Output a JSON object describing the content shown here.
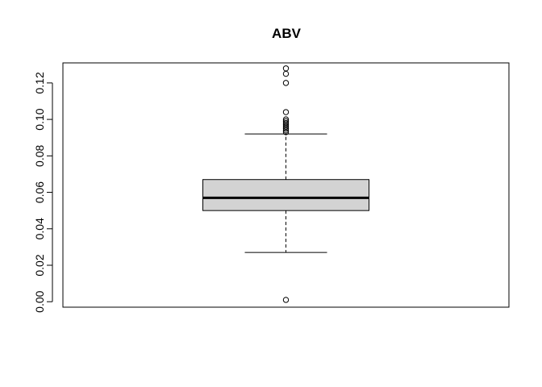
{
  "chart_data": {
    "type": "boxplot",
    "title": "ABV",
    "xlabel": "",
    "ylabel": "",
    "ylim": [
      -0.003,
      0.131
    ],
    "y_ticks": [
      0.0,
      0.02,
      0.04,
      0.06,
      0.08,
      0.1,
      0.12
    ],
    "y_tick_labels": [
      "0.00",
      "0.02",
      "0.04",
      "0.06",
      "0.08",
      "0.10",
      "0.12"
    ],
    "box": {
      "whisker_low": 0.027,
      "q1": 0.05,
      "median": 0.057,
      "q3": 0.067,
      "whisker_high": 0.092
    },
    "outliers": [
      0.001,
      0.093,
      0.094,
      0.095,
      0.096,
      0.097,
      0.098,
      0.099,
      0.1,
      0.104,
      0.12,
      0.125,
      0.128
    ],
    "box_fill": "#d3d3d3",
    "grid": false
  }
}
